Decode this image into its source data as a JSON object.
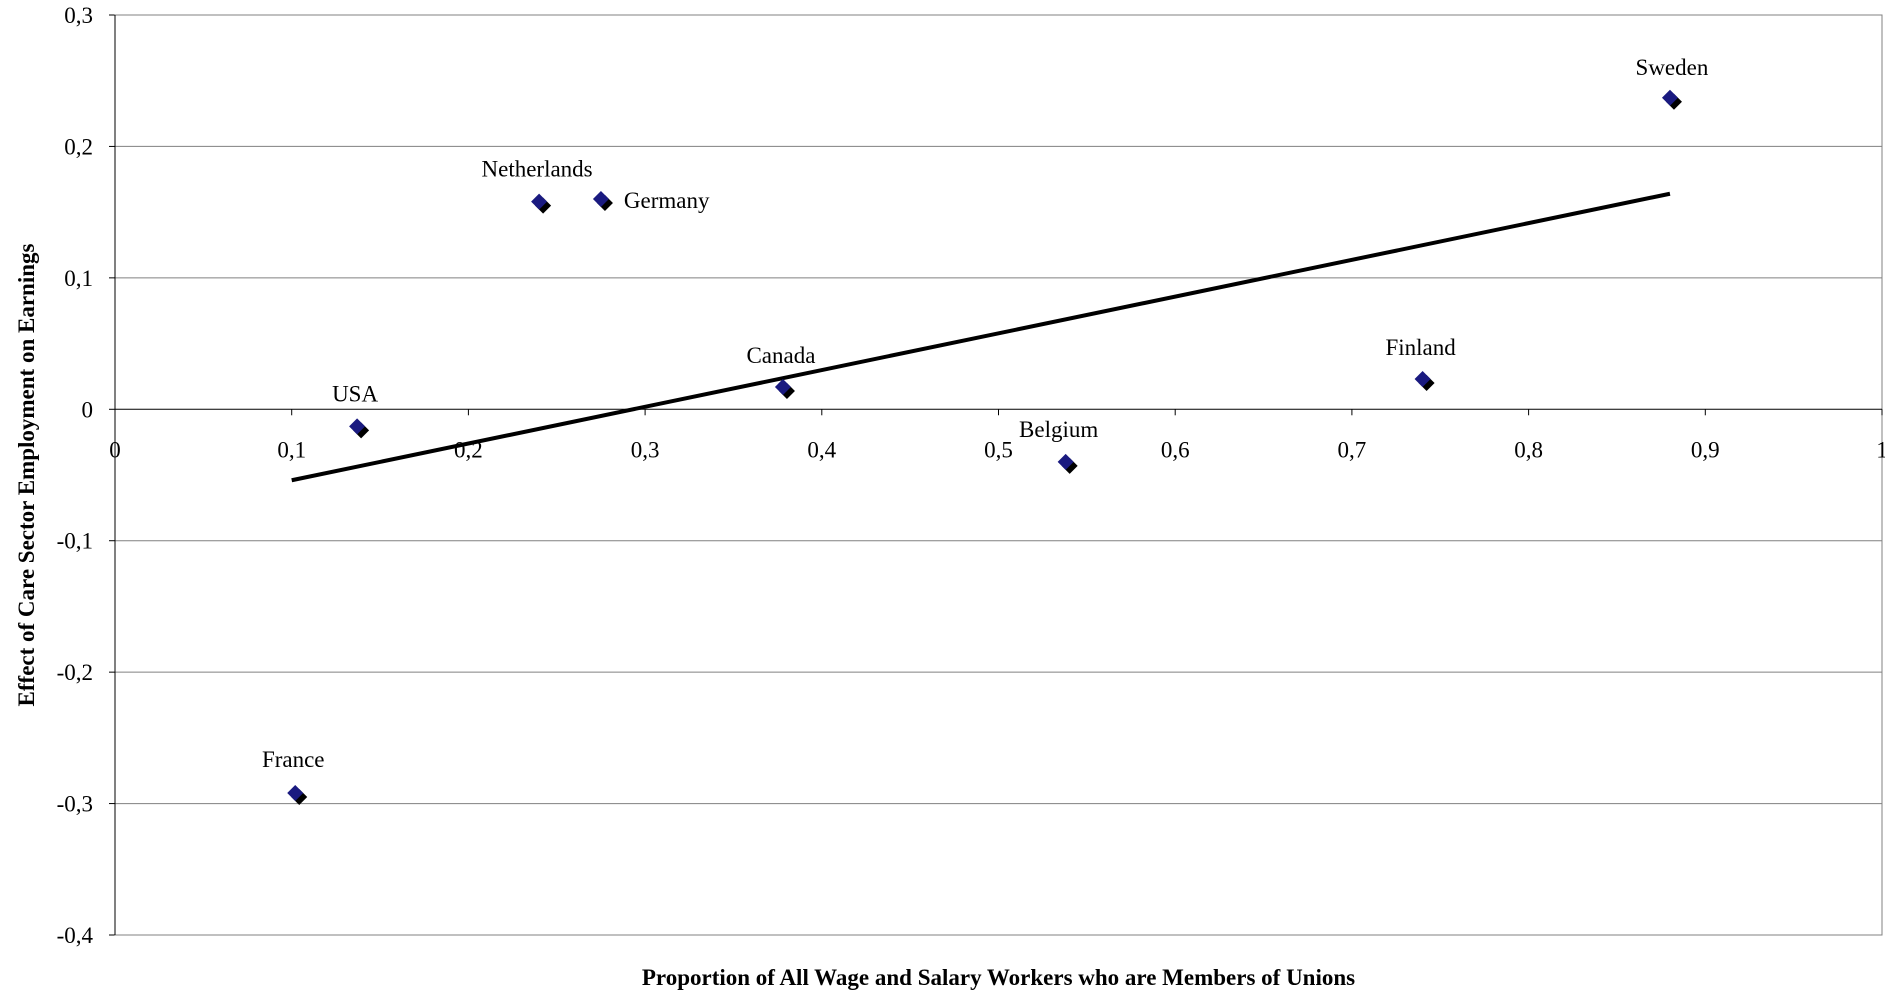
{
  "chart_data": {
    "type": "scatter",
    "title": "",
    "xlabel": "Proportion of All Wage and Salary Workers who are Members of Unions",
    "ylabel": "Effect of Care Sector Employment on Earnings",
    "xlim": [
      0,
      1
    ],
    "ylim": [
      -0.4,
      0.3
    ],
    "x_ticks": [
      "0",
      "0,1",
      "0,2",
      "0,3",
      "0,4",
      "0,5",
      "0,6",
      "0,7",
      "0,8",
      "0,9",
      "1"
    ],
    "y_ticks": [
      "0,3",
      "0,2",
      "0,1",
      "0",
      "-0,1",
      "-0,2",
      "-0,3",
      "-0,4"
    ],
    "grid": "horizontal",
    "legend": "none",
    "points": [
      {
        "label": "Sweden",
        "x": 0.88,
        "y": 0.237
      },
      {
        "label": "Netherlands",
        "x": 0.24,
        "y": 0.158
      },
      {
        "label": "Germany",
        "x": 0.275,
        "y": 0.16
      },
      {
        "label": "Canada",
        "x": 0.378,
        "y": 0.017
      },
      {
        "label": "Finland",
        "x": 0.74,
        "y": 0.023
      },
      {
        "label": "USA",
        "x": 0.137,
        "y": -0.013
      },
      {
        "label": "Belgium",
        "x": 0.538,
        "y": -0.04
      },
      {
        "label": "France",
        "x": 0.102,
        "y": -0.292
      }
    ],
    "trendline": {
      "x": [
        0.1,
        0.88
      ],
      "y": [
        -0.054,
        0.164
      ]
    },
    "colors": {
      "marker": "#1a1a80",
      "marker_shadow": "#000000",
      "trendline": "#000000",
      "grid": "#808080"
    }
  }
}
